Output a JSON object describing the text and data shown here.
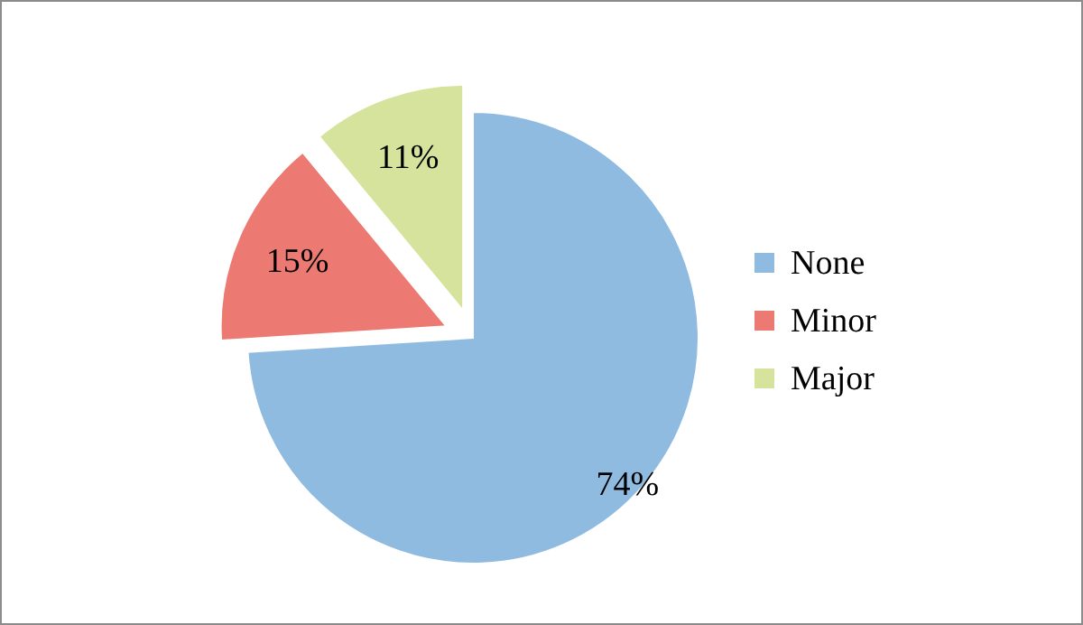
{
  "chart_data": {
    "type": "pie",
    "categories": [
      "None",
      "Minor",
      "Major"
    ],
    "values": [
      74,
      15,
      11
    ],
    "colors": [
      "#8fbbe0",
      "#ec7a72",
      "#d5e39c"
    ],
    "value_labels": [
      "74%",
      "15%",
      "11%"
    ],
    "legend": "right"
  }
}
